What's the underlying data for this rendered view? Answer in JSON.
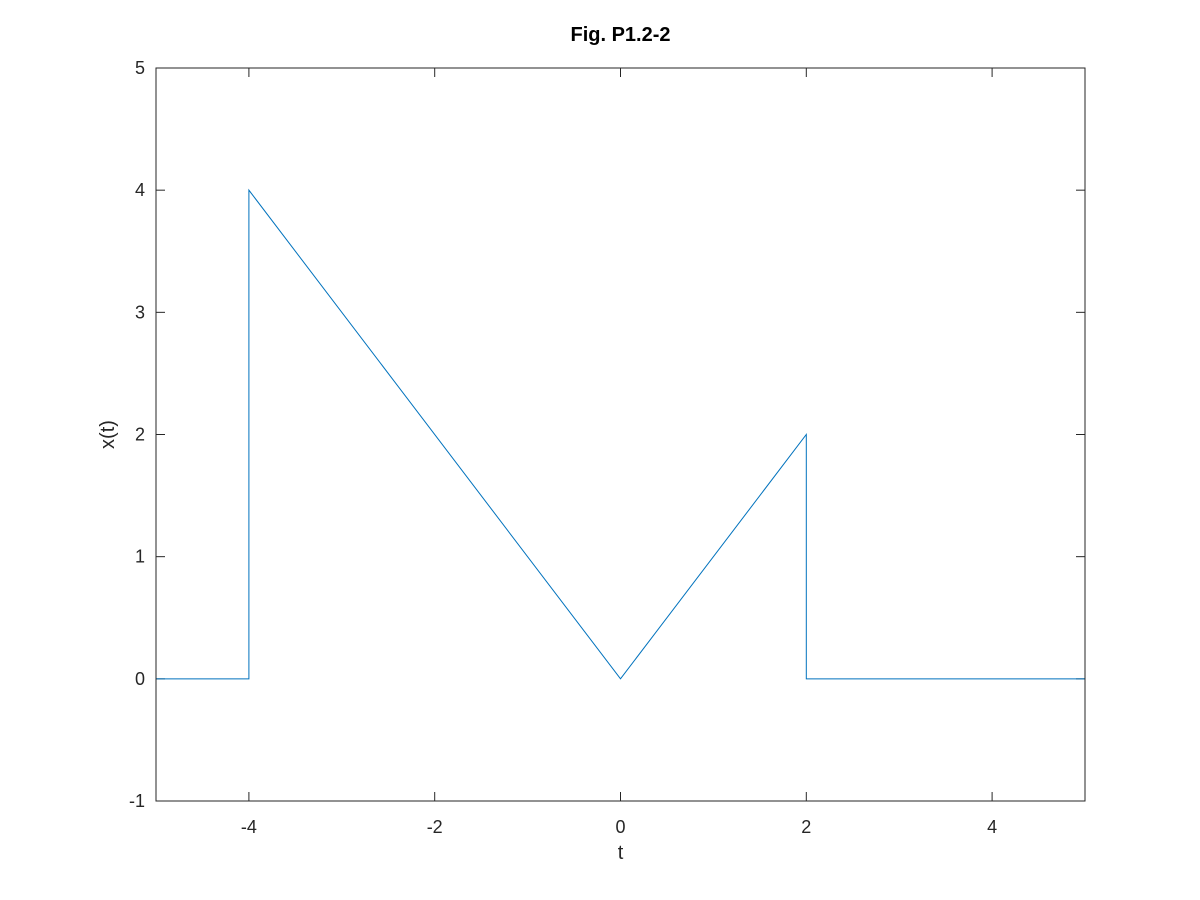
{
  "chart_data": {
    "type": "line",
    "title": "Fig. P1.2-2",
    "xlabel": "t",
    "ylabel": "x(t)",
    "xlim": [
      -5,
      5
    ],
    "ylim": [
      -1,
      5
    ],
    "xticks": [
      -4,
      -2,
      0,
      2,
      4
    ],
    "yticks": [
      -1,
      0,
      1,
      2,
      3,
      4,
      5
    ],
    "grid": false,
    "series": [
      {
        "color": "#0072bd",
        "x": [
          -5,
          -4,
          -4,
          0,
          2,
          2,
          5
        ],
        "y": [
          0,
          0,
          4,
          0,
          2,
          0,
          0
        ]
      }
    ]
  }
}
